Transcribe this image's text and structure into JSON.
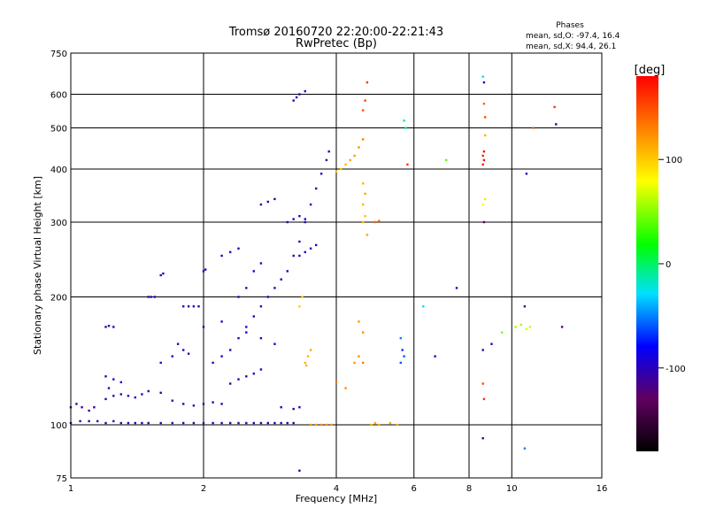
{
  "chart_data": {
    "type": "scatter",
    "title": "Tromsø 20160720 22:20:00-22:21:43",
    "subtitle": "RwPretec (Bp)",
    "xlabel": "Frequency [MHz]",
    "ylabel": "Stationary phase Virtual Height [km]",
    "x_scale": "log",
    "y_scale": "log",
    "xlim": [
      1,
      16
    ],
    "ylim": [
      75,
      750
    ],
    "x_ticks": [
      1,
      2,
      4,
      6,
      8,
      10,
      16
    ],
    "y_ticks": [
      75,
      100,
      200,
      300,
      400,
      500,
      600,
      750
    ],
    "grid": true,
    "stats": {
      "heading": "Phases",
      "line_o": "mean, sd,O: -97.4, 16.4",
      "line_x": "mean, sd,X:  94.4, 26.1"
    },
    "colorbar": {
      "label": "[deg]",
      "range": [
        -180,
        180
      ],
      "ticks": [
        100,
        0,
        -100
      ]
    },
    "series": [
      {
        "points": [
          [
            1.0,
            110,
            -110
          ],
          [
            1.03,
            112,
            -110
          ],
          [
            1.06,
            110,
            -110
          ],
          [
            1.1,
            108,
            -110
          ],
          [
            1.13,
            110,
            -110
          ],
          [
            1.0,
            101,
            -105
          ],
          [
            1.05,
            102,
            -105
          ],
          [
            1.1,
            102,
            -105
          ],
          [
            1.15,
            102,
            -105
          ],
          [
            1.2,
            101,
            -105
          ],
          [
            1.25,
            102,
            -105
          ],
          [
            1.3,
            101,
            -105
          ],
          [
            1.35,
            101,
            -105
          ],
          [
            1.4,
            101,
            -105
          ],
          [
            1.45,
            101,
            -105
          ],
          [
            1.5,
            101,
            -105
          ],
          [
            1.6,
            101,
            -105
          ],
          [
            1.7,
            101,
            -105
          ],
          [
            1.8,
            101,
            -105
          ],
          [
            1.9,
            101,
            -105
          ],
          [
            2.0,
            101,
            -105
          ],
          [
            2.1,
            101,
            -105
          ],
          [
            2.2,
            101,
            -105
          ],
          [
            2.3,
            101,
            -105
          ],
          [
            2.4,
            101,
            -105
          ],
          [
            2.5,
            101,
            -105
          ],
          [
            2.6,
            101,
            -105
          ],
          [
            2.7,
            101,
            -105
          ],
          [
            2.8,
            101,
            -105
          ],
          [
            2.9,
            101,
            -105
          ],
          [
            3.0,
            101,
            -105
          ],
          [
            3.1,
            101,
            -105
          ],
          [
            3.2,
            101,
            -105
          ],
          [
            1.2,
            115,
            -105
          ],
          [
            1.25,
            117,
            -105
          ],
          [
            1.3,
            118,
            -105
          ],
          [
            1.35,
            117,
            -105
          ],
          [
            1.4,
            116,
            -105
          ],
          [
            1.45,
            118,
            -105
          ],
          [
            1.5,
            120,
            -105
          ],
          [
            1.6,
            119,
            -105
          ],
          [
            1.7,
            114,
            -105
          ],
          [
            1.8,
            112,
            -105
          ],
          [
            1.9,
            111,
            -105
          ],
          [
            2.0,
            112,
            -105
          ],
          [
            2.1,
            113,
            -105
          ],
          [
            2.2,
            112,
            -105
          ],
          [
            1.2,
            130,
            -105
          ],
          [
            1.25,
            128,
            -105
          ],
          [
            1.3,
            126,
            -105
          ],
          [
            1.22,
            122,
            -105
          ],
          [
            1.6,
            140,
            -105
          ],
          [
            1.7,
            145,
            -105
          ],
          [
            1.75,
            155,
            -105
          ],
          [
            1.8,
            150,
            -105
          ],
          [
            1.85,
            147,
            -105
          ],
          [
            1.2,
            170,
            -105
          ],
          [
            1.22,
            171,
            -105
          ],
          [
            1.25,
            170,
            -105
          ],
          [
            1.5,
            200,
            -105
          ],
          [
            1.52,
            200,
            -105
          ],
          [
            1.55,
            200,
            -105
          ],
          [
            1.8,
            190,
            -105
          ],
          [
            1.85,
            190,
            -105
          ],
          [
            1.9,
            190,
            -105
          ],
          [
            1.95,
            190,
            -105
          ],
          [
            1.6,
            225,
            -105
          ],
          [
            1.62,
            227,
            -105
          ],
          [
            2.0,
            230,
            -105
          ],
          [
            2.02,
            232,
            -105
          ],
          [
            2.1,
            140,
            -100
          ],
          [
            2.2,
            145,
            -100
          ],
          [
            2.3,
            150,
            -100
          ],
          [
            2.4,
            160,
            -100
          ],
          [
            2.5,
            170,
            -100
          ],
          [
            2.6,
            180,
            -100
          ],
          [
            2.7,
            190,
            -100
          ],
          [
            2.8,
            200,
            -100
          ],
          [
            2.9,
            210,
            -100
          ],
          [
            3.0,
            220,
            -100
          ],
          [
            3.1,
            230,
            -100
          ],
          [
            3.2,
            250,
            -100
          ],
          [
            3.3,
            270,
            -100
          ],
          [
            3.4,
            300,
            -100
          ],
          [
            3.5,
            330,
            -100
          ],
          [
            3.6,
            360,
            -100
          ],
          [
            3.7,
            390,
            -100
          ],
          [
            3.8,
            420,
            -100
          ],
          [
            3.85,
            440,
            -100
          ],
          [
            2.4,
            200,
            -100
          ],
          [
            2.5,
            210,
            -100
          ],
          [
            2.6,
            230,
            -100
          ],
          [
            2.7,
            240,
            -100
          ],
          [
            2.2,
            250,
            -100
          ],
          [
            2.3,
            255,
            -100
          ],
          [
            2.4,
            260,
            -100
          ],
          [
            2.7,
            330,
            -100
          ],
          [
            2.8,
            335,
            -100
          ],
          [
            2.9,
            340,
            -100
          ],
          [
            3.1,
            300,
            -100
          ],
          [
            3.2,
            305,
            -100
          ],
          [
            3.3,
            310,
            -100
          ],
          [
            3.4,
            305,
            -100
          ],
          [
            3.3,
            250,
            -100
          ],
          [
            3.4,
            255,
            -100
          ],
          [
            3.5,
            260,
            -100
          ],
          [
            3.6,
            265,
            -100
          ],
          [
            3.2,
            580,
            -100
          ],
          [
            3.25,
            590,
            -100
          ],
          [
            3.3,
            600,
            -100
          ],
          [
            3.4,
            610,
            -100
          ],
          [
            2.0,
            170,
            -100
          ],
          [
            2.2,
            175,
            -100
          ],
          [
            2.5,
            165,
            -100
          ],
          [
            2.7,
            160,
            -100
          ],
          [
            2.9,
            155,
            -100
          ],
          [
            2.3,
            125,
            -100
          ],
          [
            2.4,
            128,
            -100
          ],
          [
            2.5,
            130,
            -100
          ],
          [
            2.6,
            132,
            -100
          ],
          [
            2.7,
            135,
            -100
          ],
          [
            3.0,
            110,
            -100
          ],
          [
            3.2,
            109,
            -100
          ],
          [
            3.3,
            110,
            -100
          ],
          [
            3.3,
            78,
            -100
          ],
          [
            3.5,
            100,
            120
          ],
          [
            3.6,
            100,
            120
          ],
          [
            3.7,
            100,
            125
          ],
          [
            3.8,
            100,
            120
          ],
          [
            3.9,
            100,
            120
          ],
          [
            3.4,
            140,
            110
          ],
          [
            3.45,
            145,
            110
          ],
          [
            3.5,
            150,
            115
          ],
          [
            3.42,
            138,
            110
          ],
          [
            3.3,
            190,
            100
          ],
          [
            3.35,
            200,
            100
          ],
          [
            4.0,
            395,
            100
          ],
          [
            4.1,
            400,
            105
          ],
          [
            4.2,
            410,
            110
          ],
          [
            4.3,
            420,
            115
          ],
          [
            4.4,
            430,
            120
          ],
          [
            4.5,
            450,
            125
          ],
          [
            4.6,
            470,
            130
          ],
          [
            4.6,
            370,
            110
          ],
          [
            4.65,
            350,
            115
          ],
          [
            4.6,
            330,
            110
          ],
          [
            4.65,
            310,
            105
          ],
          [
            4.6,
            300,
            110
          ],
          [
            4.7,
            280,
            115
          ],
          [
            4.6,
            550,
            150
          ],
          [
            4.65,
            580,
            155
          ],
          [
            4.7,
            640,
            160
          ],
          [
            4.8,
            100,
            110
          ],
          [
            4.9,
            101,
            115
          ],
          [
            5.0,
            100,
            110
          ],
          [
            5.3,
            101,
            115
          ],
          [
            5.5,
            100,
            110
          ],
          [
            4.4,
            140,
            120
          ],
          [
            4.5,
            145,
            125
          ],
          [
            4.6,
            140,
            130
          ],
          [
            4.5,
            175,
            120
          ],
          [
            4.6,
            165,
            125
          ],
          [
            4.0,
            126,
            130
          ],
          [
            4.2,
            122,
            125
          ],
          [
            4.9,
            300,
            140
          ],
          [
            5.0,
            302,
            135
          ],
          [
            5.6,
            140,
            -60
          ],
          [
            5.65,
            150,
            -70
          ],
          [
            5.7,
            145,
            -60
          ],
          [
            5.6,
            160,
            -50
          ],
          [
            5.7,
            520,
            -10
          ],
          [
            5.75,
            500,
            -20
          ],
          [
            5.8,
            410,
            160
          ],
          [
            6.3,
            190,
            -30
          ],
          [
            6.7,
            145,
            -100
          ],
          [
            7.1,
            420,
            40
          ],
          [
            7.5,
            210,
            -100
          ],
          [
            8.6,
            410,
            170
          ],
          [
            8.65,
            420,
            175
          ],
          [
            8.6,
            430,
            170
          ],
          [
            8.65,
            440,
            175
          ],
          [
            8.7,
            480,
            110
          ],
          [
            8.7,
            340,
            90
          ],
          [
            8.6,
            330,
            80
          ],
          [
            8.65,
            300,
            -130
          ],
          [
            8.6,
            660,
            -30
          ],
          [
            8.65,
            640,
            -100
          ],
          [
            8.7,
            530,
            150
          ],
          [
            8.65,
            570,
            140
          ],
          [
            8.6,
            125,
            150
          ],
          [
            8.65,
            115,
            160
          ],
          [
            8.6,
            150,
            -110
          ],
          [
            8.6,
            93,
            -100
          ],
          [
            9.0,
            155,
            -100
          ],
          [
            9.5,
            165,
            50
          ],
          [
            10.2,
            170,
            60
          ],
          [
            10.5,
            172,
            60
          ],
          [
            10.8,
            168,
            70
          ],
          [
            11.0,
            170,
            65
          ],
          [
            10.7,
            190,
            -110
          ],
          [
            10.8,
            390,
            -100
          ],
          [
            10.7,
            88,
            -50
          ],
          [
            11.2,
            500,
            140
          ],
          [
            12.5,
            560,
            160
          ],
          [
            12.6,
            510,
            -100
          ],
          [
            13.0,
            170,
            -120
          ]
        ]
      }
    ]
  }
}
